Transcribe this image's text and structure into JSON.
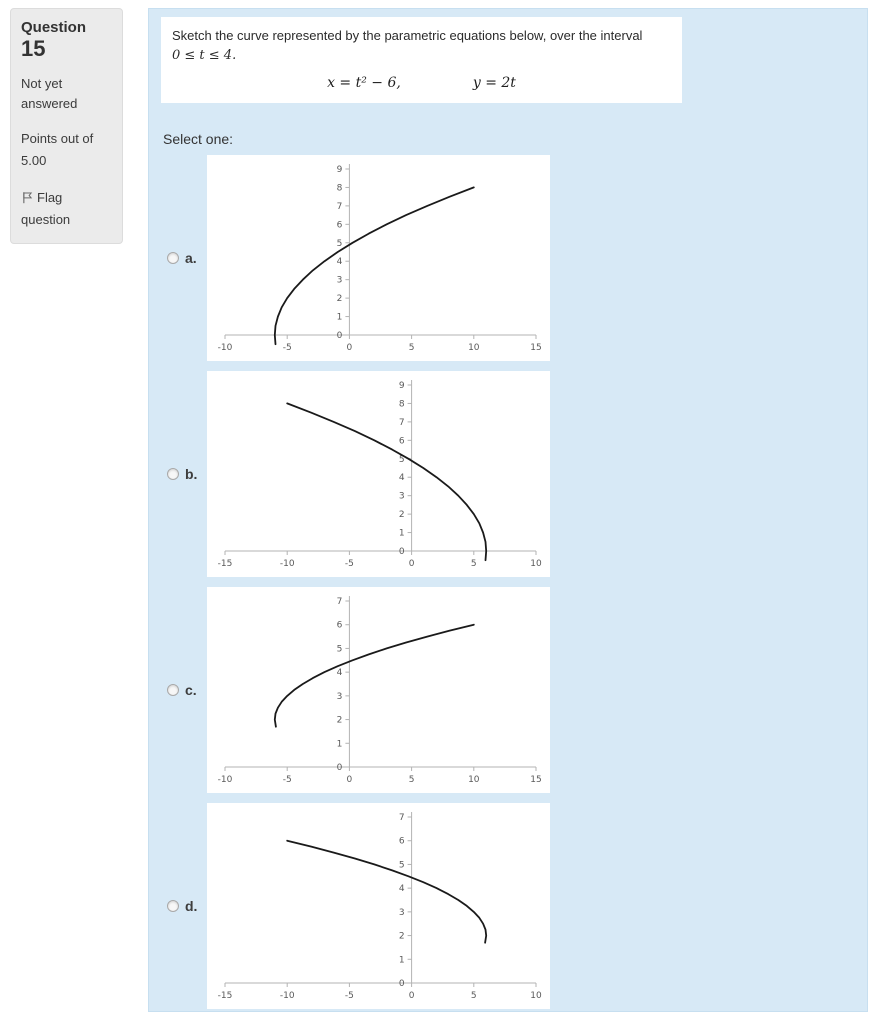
{
  "sidebar": {
    "question_label": "Question",
    "question_number": "15",
    "status": "Not yet answered",
    "points": "Points out of 5.00",
    "flag_label": "Flag question"
  },
  "main": {
    "question_line1": "Sketch the curve represented by the parametric equations below, over the interval",
    "question_interval": "0 ≤ t ≤ 4.",
    "equation_x": "x = t² − 6,",
    "equation_y": "y = 2t",
    "select_label": "Select one:",
    "options": [
      {
        "label": "a."
      },
      {
        "label": "b."
      },
      {
        "label": "c."
      },
      {
        "label": "d."
      }
    ]
  },
  "colors": {
    "main_bg": "#d7e9f6",
    "panel_bg": "#ebebeb",
    "curve": "#1a1a1a",
    "axis": "#b3b3b3",
    "tick_text": "#595959"
  },
  "chart_data": [
    {
      "type": "line",
      "option": "a",
      "xlim": [
        -10,
        15
      ],
      "ylim": [
        0,
        9
      ],
      "xticks": [
        -10,
        -5,
        0,
        5,
        10,
        15
      ],
      "yticks": [
        0,
        1,
        2,
        3,
        4,
        5,
        6,
        7,
        8,
        9
      ],
      "points": [
        [
          -5.94,
          -0.5
        ],
        [
          -6,
          0
        ],
        [
          -5.94,
          0.5
        ],
        [
          -5.75,
          1
        ],
        [
          -5.44,
          1.5
        ],
        [
          -5,
          2
        ],
        [
          -4.44,
          2.5
        ],
        [
          -3.75,
          3
        ],
        [
          -2.94,
          3.5
        ],
        [
          -2,
          4
        ],
        [
          -0.94,
          4.5
        ],
        [
          0.25,
          5
        ],
        [
          1.56,
          5.5
        ],
        [
          3,
          6
        ],
        [
          4.56,
          6.5
        ],
        [
          6.25,
          7
        ],
        [
          8.06,
          7.5
        ],
        [
          10,
          8
        ]
      ]
    },
    {
      "type": "line",
      "option": "b",
      "xlim": [
        -15,
        10
      ],
      "ylim": [
        0,
        9
      ],
      "xticks": [
        -15,
        -10,
        -5,
        0,
        5,
        10
      ],
      "yticks": [
        0,
        1,
        2,
        3,
        4,
        5,
        6,
        7,
        8,
        9
      ],
      "points": [
        [
          5.94,
          -0.5
        ],
        [
          6,
          0
        ],
        [
          5.94,
          0.5
        ],
        [
          5.75,
          1
        ],
        [
          5.44,
          1.5
        ],
        [
          5,
          2
        ],
        [
          4.44,
          2.5
        ],
        [
          3.75,
          3
        ],
        [
          2.94,
          3.5
        ],
        [
          2,
          4
        ],
        [
          0.94,
          4.5
        ],
        [
          -0.25,
          5
        ],
        [
          -1.56,
          5.5
        ],
        [
          -3,
          6
        ],
        [
          -4.56,
          6.5
        ],
        [
          -6.25,
          7
        ],
        [
          -8.06,
          7.5
        ],
        [
          -10,
          8
        ]
      ]
    },
    {
      "type": "line",
      "option": "c",
      "xlim": [
        -10,
        15
      ],
      "ylim": [
        0,
        7
      ],
      "xticks": [
        -10,
        -5,
        0,
        5,
        10,
        15
      ],
      "yticks": [
        0,
        1,
        2,
        3,
        4,
        5,
        6,
        7
      ],
      "points": [
        [
          -5.91,
          1.7
        ],
        [
          -6,
          2
        ],
        [
          -5.94,
          2.25
        ],
        [
          -5.75,
          2.5
        ],
        [
          -5.44,
          2.75
        ],
        [
          -5,
          3
        ],
        [
          -4.44,
          3.25
        ],
        [
          -3.75,
          3.5
        ],
        [
          -2.94,
          3.75
        ],
        [
          -2,
          4
        ],
        [
          -0.94,
          4.25
        ],
        [
          0.25,
          4.5
        ],
        [
          1.56,
          4.75
        ],
        [
          3,
          5
        ],
        [
          4.56,
          5.25
        ],
        [
          6.25,
          5.5
        ],
        [
          8.06,
          5.75
        ],
        [
          10,
          6
        ]
      ]
    },
    {
      "type": "line",
      "option": "d",
      "xlim": [
        -15,
        10
      ],
      "ylim": [
        0,
        7
      ],
      "xticks": [
        -15,
        -10,
        -5,
        0,
        5,
        10
      ],
      "yticks": [
        0,
        1,
        2,
        3,
        4,
        5,
        6,
        7
      ],
      "points": [
        [
          5.91,
          1.7
        ],
        [
          6,
          2
        ],
        [
          5.94,
          2.25
        ],
        [
          5.75,
          2.5
        ],
        [
          5.44,
          2.75
        ],
        [
          5,
          3
        ],
        [
          4.44,
          3.25
        ],
        [
          3.75,
          3.5
        ],
        [
          2.94,
          3.75
        ],
        [
          2,
          4
        ],
        [
          0.94,
          4.25
        ],
        [
          -0.25,
          4.5
        ],
        [
          -1.56,
          4.75
        ],
        [
          -3,
          5
        ],
        [
          -4.56,
          5.25
        ],
        [
          -6.25,
          5.5
        ],
        [
          -8.06,
          5.75
        ],
        [
          -10,
          6
        ]
      ]
    }
  ]
}
